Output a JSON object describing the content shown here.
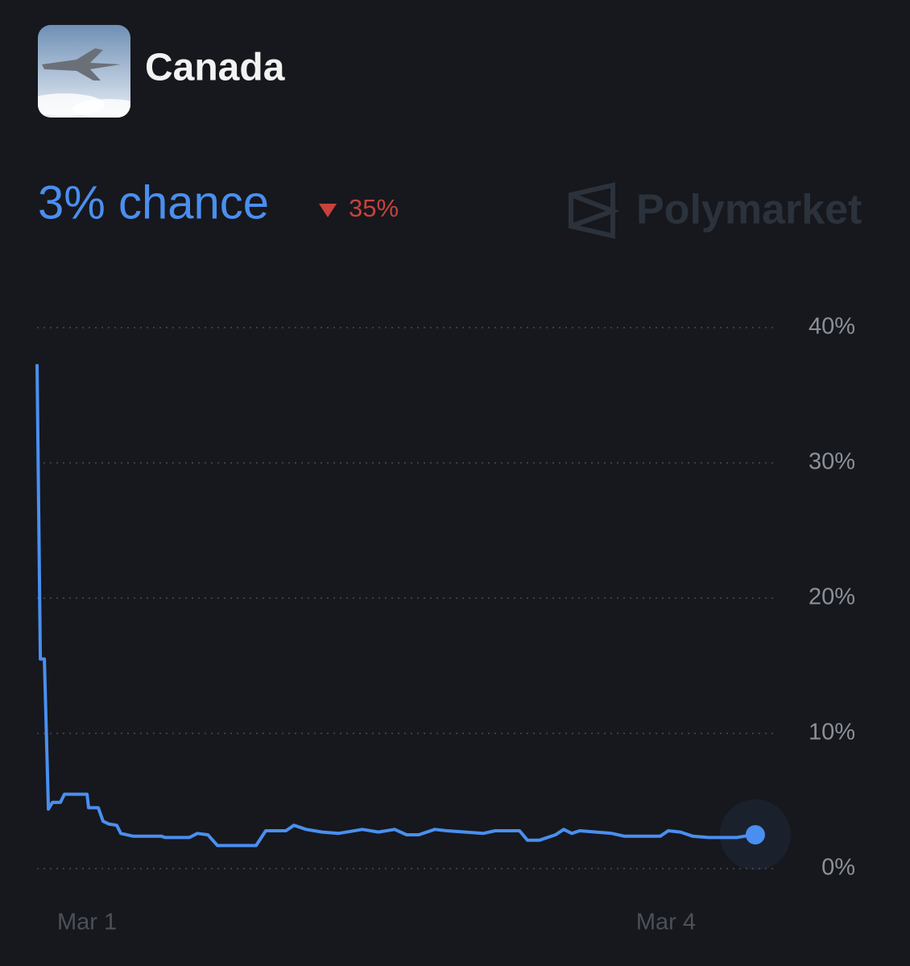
{
  "header": {
    "title": "Canada"
  },
  "summary": {
    "current": "3% chance",
    "change": "35%"
  },
  "brand": "Polymarket",
  "chart_data": {
    "type": "line",
    "x": [
      0.741,
      0.758,
      0.779,
      0.8,
      0.821,
      0.862,
      0.883,
      1.0,
      1.008,
      1.058,
      1.083,
      1.113,
      1.154,
      1.175,
      1.238,
      1.384,
      1.405,
      1.53,
      1.572,
      1.626,
      1.676,
      1.876,
      1.926,
      2.031,
      2.072,
      2.135,
      2.218,
      2.302,
      2.427,
      2.51,
      2.594,
      2.656,
      2.719,
      2.802,
      2.865,
      3.053,
      3.115,
      3.241,
      3.282,
      3.345,
      3.428,
      3.47,
      3.512,
      3.553,
      3.72,
      3.783,
      3.971,
      4.012,
      4.075,
      4.138,
      4.221,
      4.296,
      4.367,
      4.409,
      4.463
    ],
    "series": [
      {
        "name": "Canada",
        "color": "#4a8ff0",
        "values": [
          37.3,
          15.5,
          15.5,
          4.4,
          4.9,
          4.9,
          5.5,
          5.5,
          4.5,
          4.5,
          3.5,
          3.3,
          3.2,
          2.6,
          2.4,
          2.4,
          2.3,
          2.3,
          2.6,
          2.5,
          1.7,
          1.7,
          2.8,
          2.8,
          3.2,
          2.9,
          2.7,
          2.6,
          2.9,
          2.7,
          2.9,
          2.5,
          2.5,
          2.9,
          2.8,
          2.6,
          2.8,
          2.8,
          2.1,
          2.1,
          2.5,
          2.9,
          2.6,
          2.8,
          2.6,
          2.4,
          2.4,
          2.8,
          2.7,
          2.4,
          2.3,
          2.3,
          2.3,
          2.4,
          2.5
        ]
      }
    ],
    "xlim": [
      0.741,
      4.576
    ],
    "xticks": [
      {
        "value": 1,
        "label": "Mar 1"
      },
      {
        "value": 4,
        "label": "Mar 4"
      }
    ],
    "ylim": [
      0,
      40
    ],
    "yticks": [
      {
        "value": 0,
        "label": "0%"
      },
      {
        "value": 10,
        "label": "10%"
      },
      {
        "value": 20,
        "label": "20%"
      },
      {
        "value": 30,
        "label": "30%"
      },
      {
        "value": 40,
        "label": "40%"
      }
    ],
    "grid": true
  }
}
